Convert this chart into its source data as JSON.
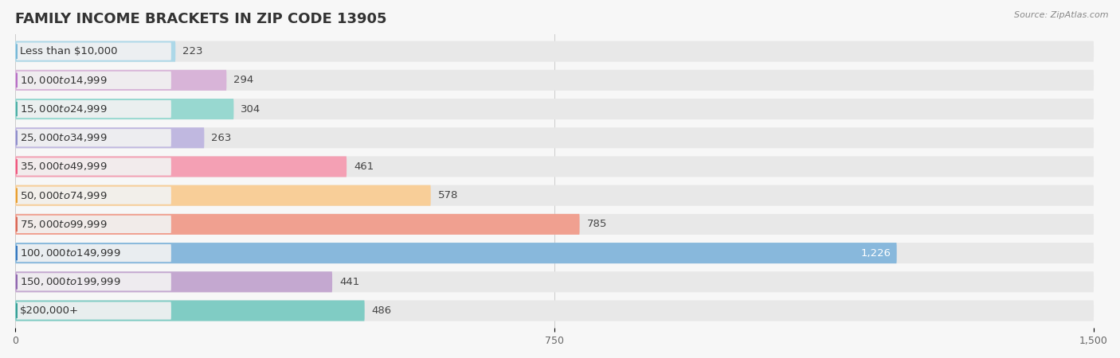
{
  "title": "FAMILY INCOME BRACKETS IN ZIP CODE 13905",
  "source": "Source: ZipAtlas.com",
  "categories": [
    "Less than $10,000",
    "$10,000 to $14,999",
    "$15,000 to $24,999",
    "$25,000 to $34,999",
    "$35,000 to $49,999",
    "$50,000 to $74,999",
    "$75,000 to $99,999",
    "$100,000 to $149,999",
    "$150,000 to $199,999",
    "$200,000+"
  ],
  "values": [
    223,
    294,
    304,
    263,
    461,
    578,
    785,
    1226,
    441,
    486
  ],
  "bar_colors": [
    "#add8e8",
    "#d8b4d8",
    "#98d8d0",
    "#c0b8e0",
    "#f4a0b4",
    "#f8ce98",
    "#f0a090",
    "#88b8dc",
    "#c4a8d0",
    "#80ccc4"
  ],
  "dot_colors": [
    "#78b8d8",
    "#b870c8",
    "#50b0a8",
    "#9090cc",
    "#f05880",
    "#e8a030",
    "#d86858",
    "#3878c0",
    "#9068b0",
    "#38a098"
  ],
  "xlim": [
    0,
    1500
  ],
  "xticks": [
    0,
    750,
    1500
  ],
  "background_color": "#f7f7f7",
  "bar_bg_color": "#e8e8e8",
  "label_bg_color": "#f0f0f0",
  "title_fontsize": 13,
  "label_fontsize": 9.5,
  "value_fontsize": 9.5,
  "tick_fontsize": 9
}
